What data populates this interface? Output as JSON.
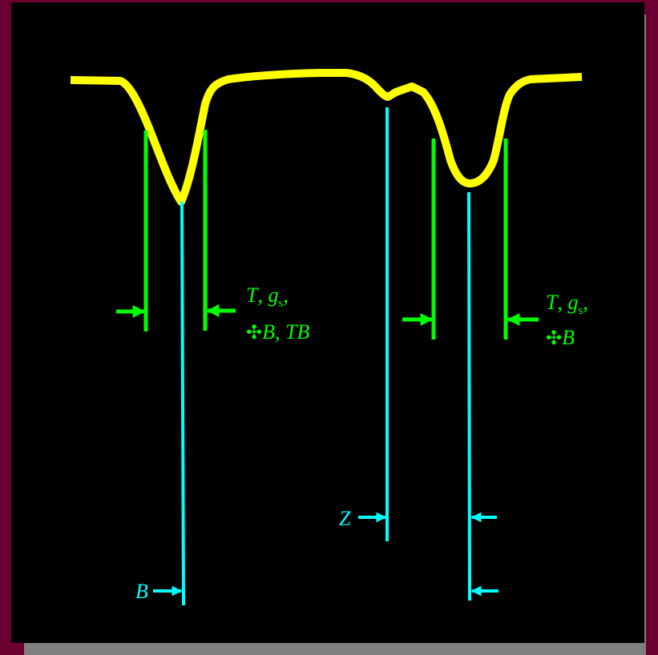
{
  "colors": {
    "background": "#6b0030",
    "panel": "#000000",
    "shadow": "#808080",
    "profile": "#ffff00",
    "width_markers": "#00ff00",
    "position_markers": "#00ffff"
  },
  "labels": {
    "left_width": {
      "line1_T": "T",
      "line1_sep": ", ",
      "line1_g": "g",
      "line1_sub": "s",
      "line1_end": ",",
      "line2_sym": "✣",
      "line2_text": "B, TB"
    },
    "right_width": {
      "line1_T": "T",
      "line1_sep": ", ",
      "line1_g": "g",
      "line1_sub": "s",
      "line1_end": ",",
      "line2_sym": "✣",
      "line2_text": "B"
    },
    "z_marker": "Z",
    "b_marker": "B"
  }
}
